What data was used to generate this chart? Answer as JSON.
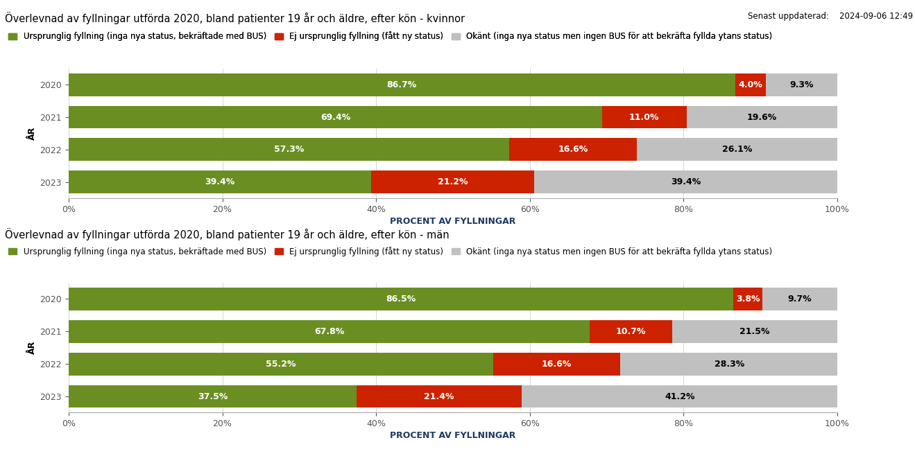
{
  "title_women": "Överlevnad av fyllningar utförda 2020, bland patienter 19 år och äldre, efter kön - kvinnor",
  "title_men": "Överlevnad av fyllningar utförda 2020, bland patienter 19 år och äldre, efter kön - män",
  "update_text": "Senast uppdaterad:    2024-09-06 12:49",
  "legend_labels": [
    "Ursprunglig fyllning (inga nya status, bekräftade med BUS)",
    "Ej ursprunglig fyllning (fått ny status)",
    "Okänt (inga nya status men ingen BUS för att bekräfta fyllda ytans status)"
  ],
  "colors": [
    "#6b8e23",
    "#cc2200",
    "#c0c0c0"
  ],
  "years": [
    2020,
    2021,
    2022,
    2023
  ],
  "women": {
    "original": [
      86.7,
      69.4,
      57.3,
      39.4
    ],
    "non_original": [
      4.0,
      11.0,
      16.6,
      21.2
    ],
    "unknown": [
      9.3,
      19.6,
      26.1,
      39.4
    ]
  },
  "men": {
    "original": [
      86.5,
      67.8,
      55.2,
      37.5
    ],
    "non_original": [
      3.8,
      10.7,
      16.6,
      21.4
    ],
    "unknown": [
      9.7,
      21.5,
      28.3,
      41.2
    ]
  },
  "xlabel": "PROCENT AV FYLLNINGAR",
  "ylabel": "ÅR",
  "xlim": [
    0,
    100
  ],
  "bar_height": 0.7,
  "background_color": "#ffffff",
  "title_fontsize": 10.5,
  "label_fontsize": 9,
  "legend_fontsize": 8.5,
  "tick_fontsize": 9,
  "border_color": "#1f3864"
}
